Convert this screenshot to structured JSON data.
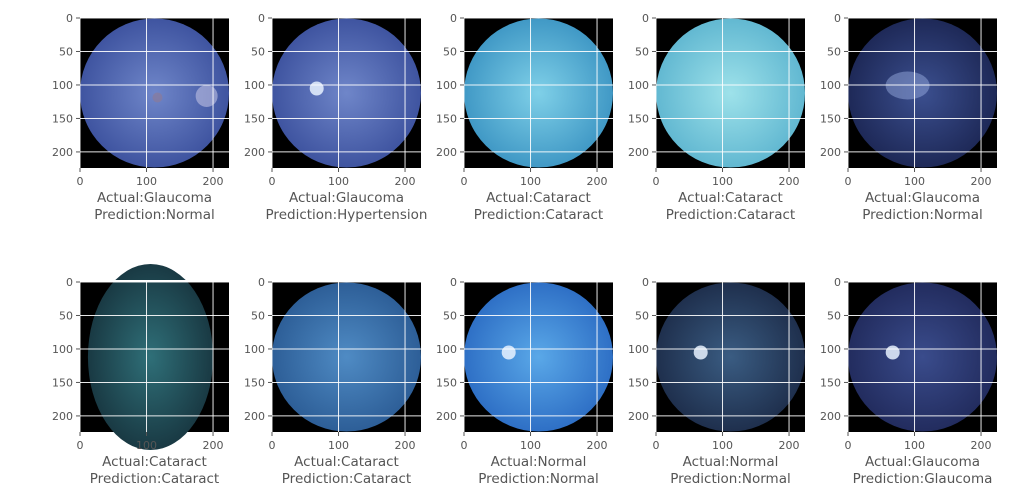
{
  "figure": {
    "xticks": [
      "0",
      "100",
      "200"
    ],
    "yticks": [
      "0",
      "50",
      "100",
      "150",
      "200"
    ],
    "panels": [
      {
        "actual": "Actual:Glaucoma",
        "prediction": "Prediction:Normal",
        "palette": "blue",
        "shape": "circle",
        "disc": "right"
      },
      {
        "actual": "Actual:Glaucoma",
        "prediction": "Prediction:Hypertension",
        "palette": "blue",
        "shape": "circle",
        "disc": "left"
      },
      {
        "actual": "Actual:Cataract",
        "prediction": "Prediction:Cataract",
        "palette": "cyan",
        "shape": "circle",
        "disc": "none"
      },
      {
        "actual": "Actual:Cataract",
        "prediction": "Prediction:Cataract",
        "palette": "paleCyan",
        "shape": "circle",
        "disc": "none"
      },
      {
        "actual": "Actual:Glaucoma",
        "prediction": "Prediction:Normal",
        "palette": "navy",
        "shape": "circle",
        "disc": "blotch"
      },
      {
        "actual": "Actual:Cataract",
        "prediction": "Prediction:Cataract",
        "palette": "teal",
        "shape": "ellipse",
        "disc": "none"
      },
      {
        "actual": "Actual:Cataract",
        "prediction": "Prediction:Cataract",
        "palette": "steel",
        "shape": "circle",
        "disc": "none"
      },
      {
        "actual": "Actual:Normal",
        "prediction": "Prediction:Normal",
        "palette": "bright",
        "shape": "circle",
        "disc": "left"
      },
      {
        "actual": "Actual:Normal",
        "prediction": "Prediction:Normal",
        "palette": "dark",
        "shape": "circle",
        "disc": "left"
      },
      {
        "actual": "Actual:Glaucoma",
        "prediction": "Prediction:Glaucoma",
        "palette": "navy2",
        "shape": "circle",
        "disc": "left"
      }
    ]
  },
  "palettes": {
    "blue": {
      "center": "#6f86c9",
      "edge": "#3a4f9c"
    },
    "cyan": {
      "center": "#7fd0e8",
      "edge": "#3a93c2"
    },
    "paleCyan": {
      "center": "#9ee2ea",
      "edge": "#5cb4cf"
    },
    "navy": {
      "center": "#3b4f8f",
      "edge": "#1b2552"
    },
    "teal": {
      "center": "#2f6f78",
      "edge": "#17343e"
    },
    "steel": {
      "center": "#4f8bc4",
      "edge": "#2a5a93"
    },
    "bright": {
      "center": "#5aa8e8",
      "edge": "#2a6ac2"
    },
    "dark": {
      "center": "#3a5c82",
      "edge": "#1c2b48"
    },
    "navy2": {
      "center": "#3a4c8c",
      "edge": "#20295a"
    }
  }
}
